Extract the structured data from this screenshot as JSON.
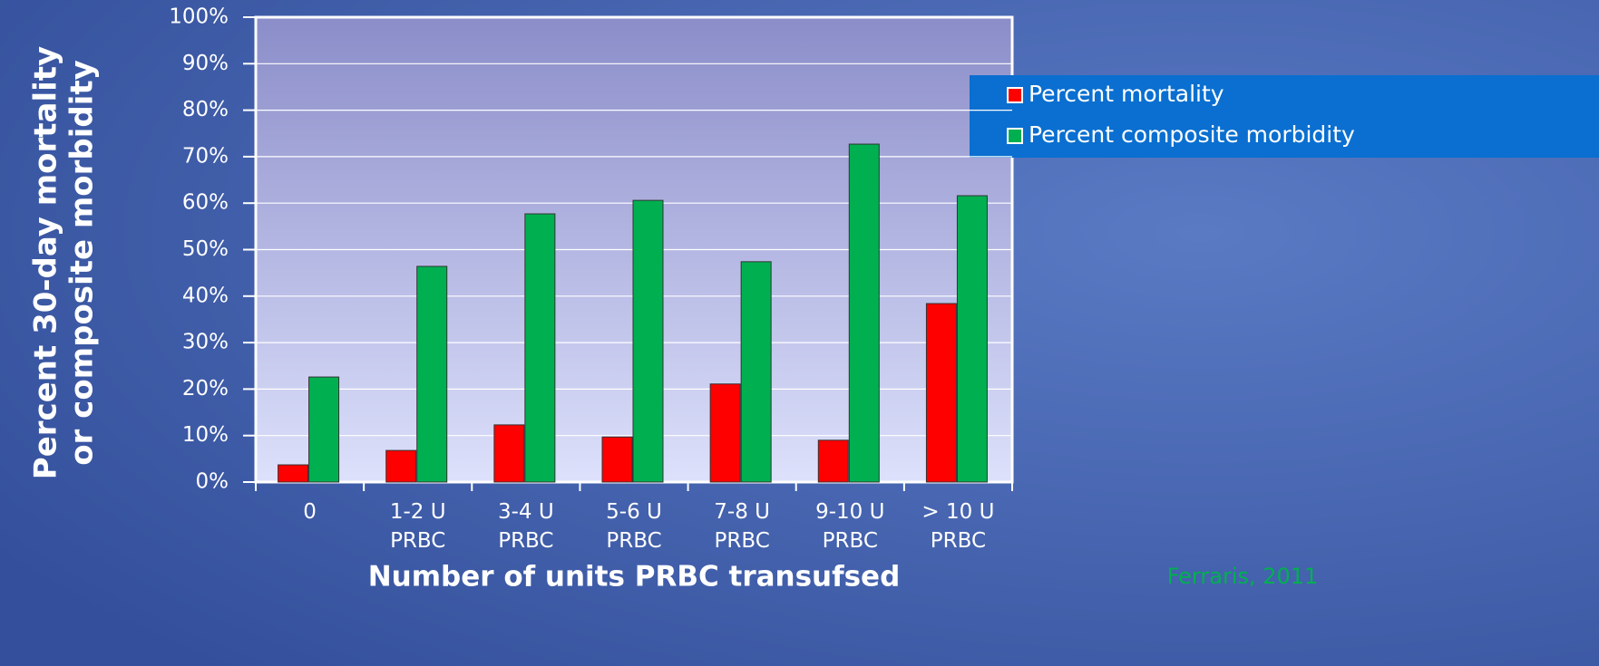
{
  "chart_data": {
    "type": "bar",
    "y_label": [
      "Percent 30-day mortality",
      "or composite morbidity"
    ],
    "x_label": "Number of units PRBC transufsed",
    "source": "Ferraris, 2011",
    "categories": [
      "0",
      "1-2 U\nPRBC",
      "3-4 U\nPRBC",
      "5-6 U\nPRBC",
      "7-8 U\nPRBC",
      "9-10 U\nPRBC",
      "> 10 U\nPRBC"
    ],
    "series": [
      {
        "name": "Percent mortality",
        "color": "#ff0000",
        "values": [
          3.7,
          6.8,
          12.3,
          9.7,
          21.1,
          9.0,
          38.4
        ]
      },
      {
        "name": "Percent composite morbidity",
        "color": "#00b050",
        "values": [
          22.6,
          46.4,
          57.7,
          60.6,
          47.4,
          72.7,
          61.6
        ]
      }
    ],
    "ylim": [
      0,
      100
    ],
    "yticks": [
      {
        "value": 0,
        "label": "0%"
      },
      {
        "value": 10,
        "label": "10%"
      },
      {
        "value": 20,
        "label": "20%"
      },
      {
        "value": 30,
        "label": "30%"
      },
      {
        "value": 40,
        "label": "40%"
      },
      {
        "value": 50,
        "label": "50%"
      },
      {
        "value": 60,
        "label": "60%"
      },
      {
        "value": 70,
        "label": "70%"
      },
      {
        "value": 80,
        "label": "80%"
      },
      {
        "value": 90,
        "label": "90%"
      },
      {
        "value": 100,
        "label": "100%"
      }
    ],
    "grid": true,
    "legend": "right"
  }
}
